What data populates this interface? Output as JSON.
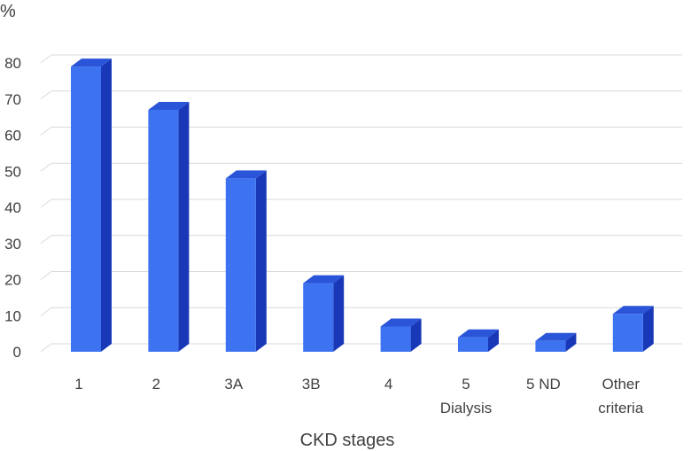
{
  "chart_data": {
    "type": "bar",
    "title": "",
    "ylabel": "%",
    "xlabel": "CKD stages",
    "categories": [
      [
        "1"
      ],
      [
        "2"
      ],
      [
        "3A"
      ],
      [
        "3B"
      ],
      [
        "4"
      ],
      [
        "5",
        "Dialysis"
      ],
      [
        "5 ND"
      ],
      [
        "Other",
        "criteria"
      ]
    ],
    "values": [
      79,
      67,
      48,
      19,
      7,
      4,
      3,
      10.5
    ],
    "ylim": [
      0,
      80
    ],
    "yticks": [
      0,
      10,
      20,
      30,
      40,
      50,
      60,
      70,
      80
    ],
    "grid": true,
    "bar_colors": {
      "front": "#3d73f0",
      "side": "#1838b8",
      "top": "#2a55d8"
    },
    "grid_color": "#d9d9d9"
  }
}
